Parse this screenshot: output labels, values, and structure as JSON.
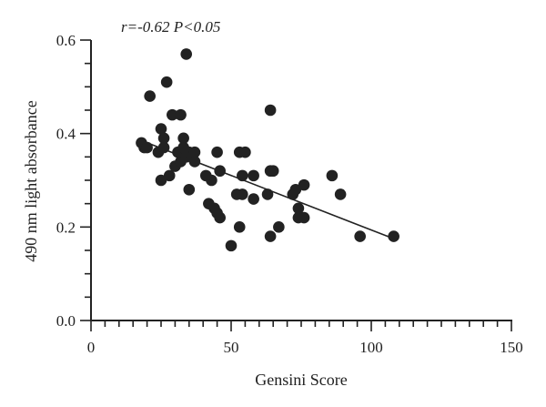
{
  "chart_data": {
    "type": "scatter",
    "annotation": "r=-0.62 P<0.05",
    "xlabel": "Gensini Score",
    "ylabel": "490 nm light absorbance",
    "xlim": [
      0,
      150
    ],
    "ylim": [
      0.0,
      0.6
    ],
    "x_ticks": [
      "0",
      "50",
      "100",
      "150"
    ],
    "y_ticks": [
      "0.0",
      "0.2",
      "0.4",
      "0.6"
    ],
    "x_minor_step": 5,
    "y_minor_step": 0.05,
    "grid": false,
    "point_color": "#222222",
    "line_color": "#222222",
    "points": [
      {
        "x": 18,
        "y": 0.38
      },
      {
        "x": 19,
        "y": 0.37
      },
      {
        "x": 20,
        "y": 0.37
      },
      {
        "x": 21,
        "y": 0.48
      },
      {
        "x": 24,
        "y": 0.36
      },
      {
        "x": 25,
        "y": 0.41
      },
      {
        "x": 25,
        "y": 0.3
      },
      {
        "x": 26,
        "y": 0.39
      },
      {
        "x": 26,
        "y": 0.37
      },
      {
        "x": 27,
        "y": 0.51
      },
      {
        "x": 28,
        "y": 0.31
      },
      {
        "x": 29,
        "y": 0.44
      },
      {
        "x": 30,
        "y": 0.33
      },
      {
        "x": 31,
        "y": 0.36
      },
      {
        "x": 32,
        "y": 0.44
      },
      {
        "x": 32,
        "y": 0.34
      },
      {
        "x": 33,
        "y": 0.39
      },
      {
        "x": 33,
        "y": 0.37
      },
      {
        "x": 34,
        "y": 0.57
      },
      {
        "x": 34,
        "y": 0.35
      },
      {
        "x": 35,
        "y": 0.36
      },
      {
        "x": 35,
        "y": 0.28
      },
      {
        "x": 36,
        "y": 0.35
      },
      {
        "x": 37,
        "y": 0.36
      },
      {
        "x": 37,
        "y": 0.34
      },
      {
        "x": 41,
        "y": 0.31
      },
      {
        "x": 42,
        "y": 0.25
      },
      {
        "x": 43,
        "y": 0.3
      },
      {
        "x": 44,
        "y": 0.24
      },
      {
        "x": 45,
        "y": 0.36
      },
      {
        "x": 45,
        "y": 0.23
      },
      {
        "x": 46,
        "y": 0.22
      },
      {
        "x": 46,
        "y": 0.32
      },
      {
        "x": 50,
        "y": 0.16
      },
      {
        "x": 52,
        "y": 0.27
      },
      {
        "x": 53,
        "y": 0.36
      },
      {
        "x": 53,
        "y": 0.2
      },
      {
        "x": 54,
        "y": 0.31
      },
      {
        "x": 55,
        "y": 0.36
      },
      {
        "x": 54,
        "y": 0.27
      },
      {
        "x": 58,
        "y": 0.31
      },
      {
        "x": 58,
        "y": 0.26
      },
      {
        "x": 63,
        "y": 0.27
      },
      {
        "x": 64,
        "y": 0.45
      },
      {
        "x": 64,
        "y": 0.32
      },
      {
        "x": 64,
        "y": 0.18
      },
      {
        "x": 65,
        "y": 0.32
      },
      {
        "x": 67,
        "y": 0.2
      },
      {
        "x": 72,
        "y": 0.27
      },
      {
        "x": 73,
        "y": 0.28
      },
      {
        "x": 74,
        "y": 0.24
      },
      {
        "x": 74,
        "y": 0.22
      },
      {
        "x": 76,
        "y": 0.29
      },
      {
        "x": 76,
        "y": 0.22
      },
      {
        "x": 86,
        "y": 0.31
      },
      {
        "x": 89,
        "y": 0.27
      },
      {
        "x": 96,
        "y": 0.18
      },
      {
        "x": 108,
        "y": 0.18
      }
    ],
    "regression_line": {
      "x1": 18,
      "y1": 0.385,
      "x2": 108,
      "y2": 0.175
    }
  }
}
